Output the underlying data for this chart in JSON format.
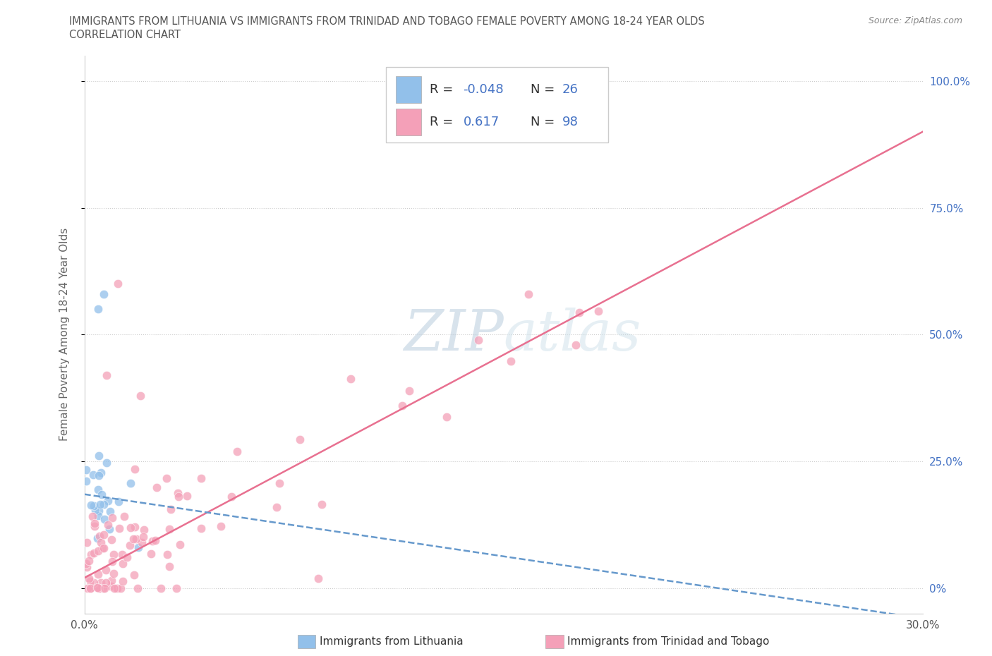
{
  "title_line1": "IMMIGRANTS FROM LITHUANIA VS IMMIGRANTS FROM TRINIDAD AND TOBAGO FEMALE POVERTY AMONG 18-24 YEAR OLDS",
  "title_line2": "CORRELATION CHART",
  "source_text": "Source: ZipAtlas.com",
  "ylabel": "Female Poverty Among 18-24 Year Olds",
  "xlim": [
    0.0,
    0.3
  ],
  "ylim": [
    -0.05,
    1.05
  ],
  "ytick_vals": [
    0.0,
    0.25,
    0.5,
    0.75,
    1.0
  ],
  "ytick_labels_right": [
    "0%",
    "25.0%",
    "50.0%",
    "75.0%",
    "100.0%"
  ],
  "xtick_vals": [
    0.0,
    0.05,
    0.1,
    0.15,
    0.2,
    0.25,
    0.3
  ],
  "xtick_labels": [
    "0.0%",
    "",
    "",
    "",
    "",
    "",
    "30.0%"
  ],
  "grid_color": "#cccccc",
  "background_color": "#ffffff",
  "lithuania_color": "#92c0ea",
  "tt_color": "#f4a0b8",
  "lithuania_line_color": "#6699cc",
  "tt_line_color": "#e87090",
  "lithuania_label": "Immigrants from Lithuania",
  "tt_label": "Immigrants from Trinidad and Tobago",
  "r_lithuania": -0.048,
  "n_lithuania": 26,
  "r_tt": 0.617,
  "n_tt": 98,
  "watermark": "ZIPatlas",
  "legend_R_color": "#333333",
  "legend_N_color": "#4472c4",
  "lith_line_x0": 0.0,
  "lith_line_y0": 0.185,
  "lith_line_x1": 0.3,
  "lith_line_y1": -0.06,
  "tt_line_x0": 0.0,
  "tt_line_y0": 0.02,
  "tt_line_x1": 0.3,
  "tt_line_y1": 0.9
}
